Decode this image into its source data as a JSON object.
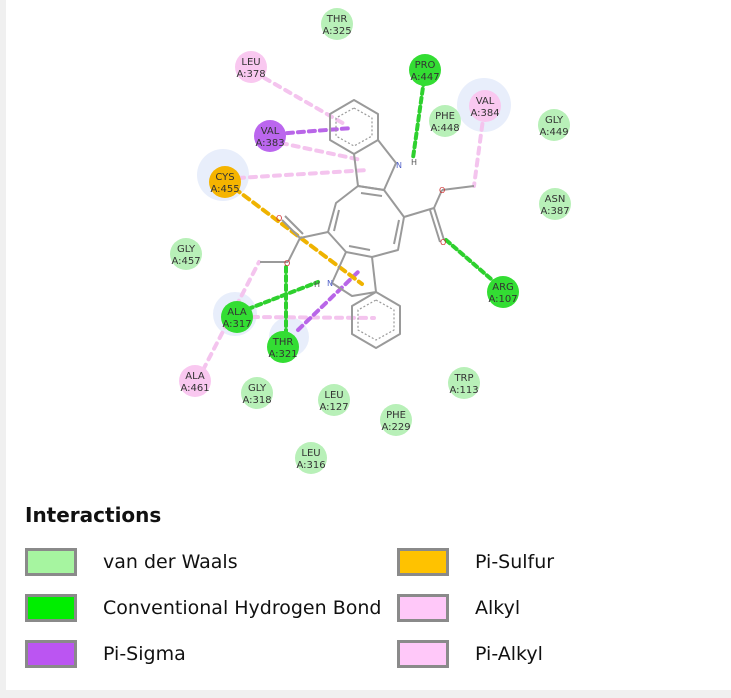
{
  "colors": {
    "vdw": "#b8f0b8",
    "hbond": "#33dd33",
    "pisigma": "#bb66ee",
    "pisulfur": "#f5b400",
    "alkyl": "#f9c8f0",
    "bond": "#999999"
  },
  "residues": [
    {
      "id": "thr325",
      "name": "THR",
      "chain": "A:325",
      "type": "vdw"
    },
    {
      "id": "leu378",
      "name": "LEU",
      "chain": "A:378",
      "type": "alkyl"
    },
    {
      "id": "pro447",
      "name": "PRO",
      "chain": "A:447",
      "type": "hbond"
    },
    {
      "id": "phe448",
      "name": "PHE",
      "chain": "A:448",
      "type": "vdw"
    },
    {
      "id": "val384",
      "name": "VAL",
      "chain": "A:384",
      "type": "alkyl"
    },
    {
      "id": "gly449",
      "name": "GLY",
      "chain": "A:449",
      "type": "vdw"
    },
    {
      "id": "val383",
      "name": "VAL",
      "chain": "A:383",
      "type": "pisigma"
    },
    {
      "id": "cys455",
      "name": "CYS",
      "chain": "A:455",
      "type": "pisulfur"
    },
    {
      "id": "asn387",
      "name": "ASN",
      "chain": "A:387",
      "type": "vdw"
    },
    {
      "id": "gly457",
      "name": "GLY",
      "chain": "A:457",
      "type": "vdw"
    },
    {
      "id": "arg107",
      "name": "ARG",
      "chain": "A:107",
      "type": "hbond"
    },
    {
      "id": "ala317",
      "name": "ALA",
      "chain": "A:317",
      "type": "hbond"
    },
    {
      "id": "thr321",
      "name": "THR",
      "chain": "A:321",
      "type": "hbond"
    },
    {
      "id": "ala461",
      "name": "ALA",
      "chain": "A:461",
      "type": "alkyl"
    },
    {
      "id": "gly318",
      "name": "GLY",
      "chain": "A:318",
      "type": "vdw"
    },
    {
      "id": "leu127",
      "name": "LEU",
      "chain": "A:127",
      "type": "vdw"
    },
    {
      "id": "trp113",
      "name": "TRP",
      "chain": "A:113",
      "type": "vdw"
    },
    {
      "id": "phe229",
      "name": "PHE",
      "chain": "A:229",
      "type": "vdw"
    },
    {
      "id": "leu316",
      "name": "LEU",
      "chain": "A:316",
      "type": "vdw"
    }
  ],
  "atom_labels": {
    "nh1": "N",
    "h1": "H",
    "nh2": "N",
    "h2": "H",
    "o1": "O",
    "o2": "O",
    "o3": "O",
    "o4": "O"
  },
  "legend": {
    "title": "Interactions",
    "items": [
      {
        "label": "van der Waals",
        "color": "#a6f5a0"
      },
      {
        "label": "Conventional Hydrogen Bond",
        "color": "#00ee00"
      },
      {
        "label": "Pi-Sigma",
        "color": "#bb55f2"
      },
      {
        "label": "Pi-Sulfur",
        "color": "#ffc200"
      },
      {
        "label": "Alkyl",
        "color": "#ffc8f9"
      },
      {
        "label": "Pi-Alkyl",
        "color": "#ffc8f9"
      }
    ]
  }
}
